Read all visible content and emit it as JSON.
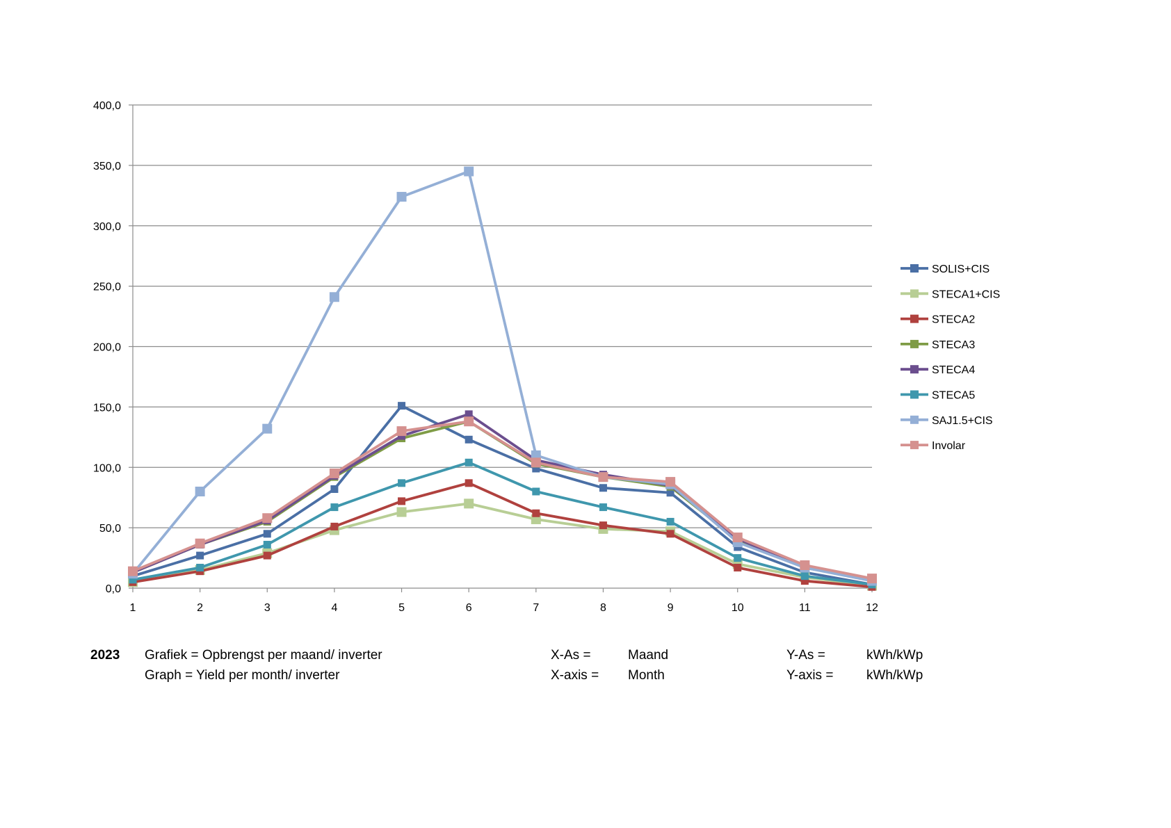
{
  "chart_data": {
    "type": "line",
    "title": "",
    "xlabel": "",
    "ylabel": "",
    "categories": [
      "1",
      "2",
      "3",
      "4",
      "5",
      "6",
      "7",
      "8",
      "9",
      "10",
      "11",
      "12"
    ],
    "ylim": [
      0,
      400
    ],
    "yticks": [
      "0,0",
      "50,0",
      "100,0",
      "150,0",
      "200,0",
      "250,0",
      "300,0",
      "350,0",
      "400,0"
    ],
    "grid": true,
    "legend_position": "right",
    "series": [
      {
        "name": "SOLIS+CIS",
        "color": "#4A6FA5",
        "values": [
          10,
          27,
          45,
          82,
          151,
          123,
          99,
          83,
          79,
          34,
          13,
          3
        ]
      },
      {
        "name": "STECA1+CIS",
        "color": "#B8CE95",
        "values": [
          5,
          15,
          29,
          48,
          63,
          70,
          57,
          49,
          47,
          20,
          9,
          2
        ]
      },
      {
        "name": "STECA2",
        "color": "#B0413E",
        "values": [
          5,
          14,
          27,
          51,
          72,
          87,
          62,
          52,
          45,
          17,
          6,
          1
        ]
      },
      {
        "name": "STECA3",
        "color": "#7F9C46",
        "values": [
          13,
          36,
          55,
          92,
          124,
          138,
          103,
          92,
          84,
          40,
          17,
          7
        ]
      },
      {
        "name": "STECA4",
        "color": "#6B4E8E",
        "values": [
          13,
          36,
          56,
          93,
          126,
          144,
          106,
          94,
          85,
          41,
          17,
          7
        ]
      },
      {
        "name": "STECA5",
        "color": "#3F97AD",
        "values": [
          7,
          17,
          36,
          67,
          87,
          104,
          80,
          67,
          55,
          25,
          10,
          3
        ]
      },
      {
        "name": "SAJ1.5+CIS",
        "color": "#94AFD6",
        "values": [
          12,
          80,
          132,
          241,
          324,
          345,
          110,
          92,
          86,
          38,
          17,
          6
        ]
      },
      {
        "name": "Involar",
        "color": "#D5918F",
        "values": [
          14,
          37,
          58,
          95,
          130,
          138,
          104,
          92,
          88,
          42,
          19,
          8
        ]
      }
    ]
  },
  "caption": {
    "year": "2023",
    "line1": {
      "description": "Grafiek = Opbrengst per maand/ inverter",
      "x_key": "X-As =",
      "x_val": "Maand",
      "y_key": "Y-As =",
      "y_val": "kWh/kWp"
    },
    "line2": {
      "description": "Graph = Yield per month/ inverter",
      "x_key": "X-axis =",
      "x_val": "Month",
      "y_key": "Y-axis =",
      "y_val": "kWh/kWp"
    }
  }
}
